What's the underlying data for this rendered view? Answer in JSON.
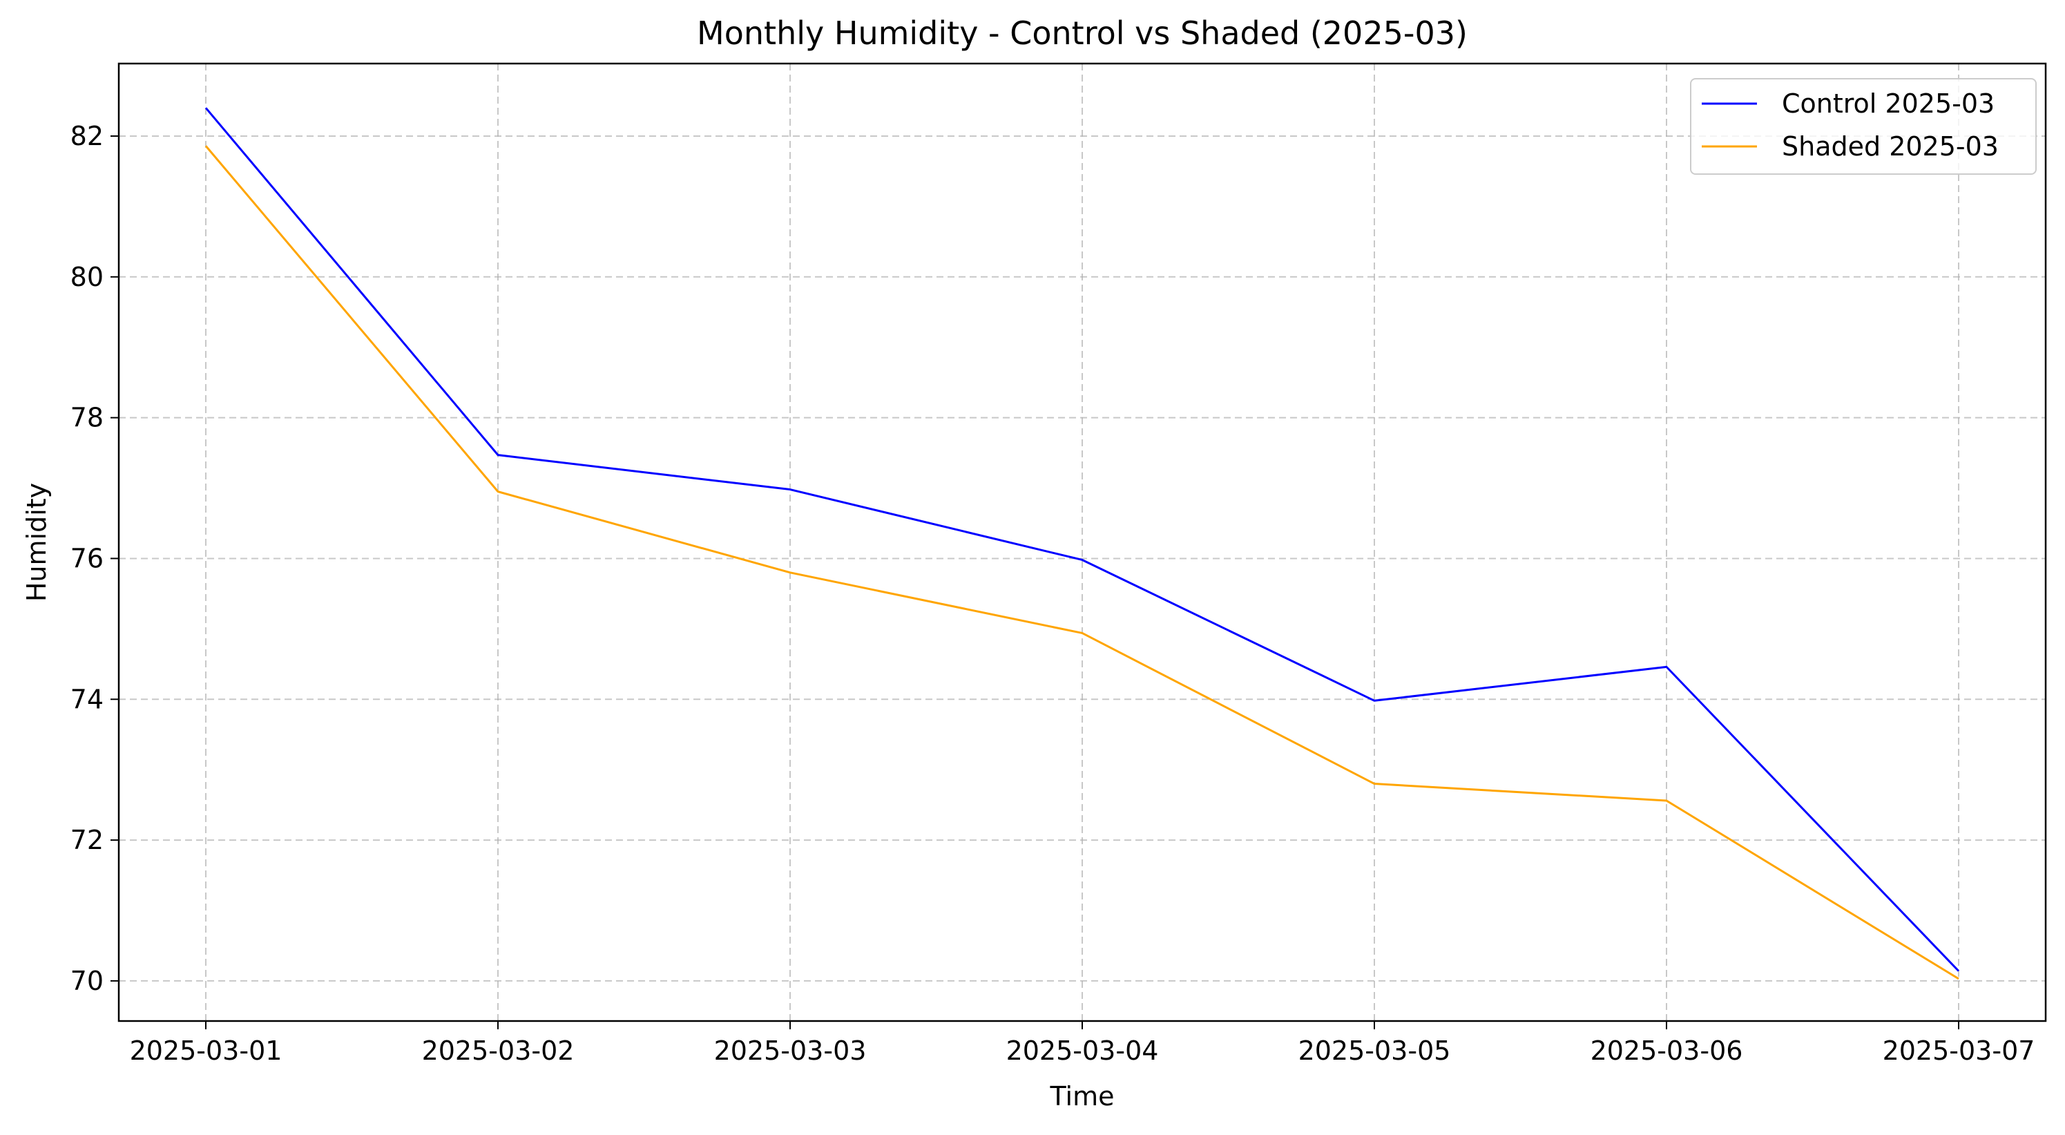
{
  "chart_data": {
    "type": "line",
    "title": "Monthly Humidity - Control vs Shaded (2025-03)",
    "xlabel": "Time",
    "ylabel": "Humidity",
    "x": [
      "2025-03-01",
      "2025-03-02",
      "2025-03-03",
      "2025-03-04",
      "2025-03-05",
      "2025-03-06",
      "2025-03-07"
    ],
    "yticks": [
      "70",
      "72",
      "74",
      "76",
      "78",
      "80",
      "82"
    ],
    "ylim": [
      69.43,
      83.03
    ],
    "grid": true,
    "legend_position": "top-right",
    "series": [
      {
        "name": "Control 2025-03",
        "color": "#0000ff",
        "values": [
          82.4,
          77.47,
          76.98,
          75.98,
          73.98,
          74.46,
          70.14
        ]
      },
      {
        "name": "Shaded 2025-03",
        "color": "#ffa500",
        "values": [
          81.86,
          76.95,
          75.8,
          74.94,
          72.8,
          72.56,
          70.03
        ]
      }
    ]
  }
}
